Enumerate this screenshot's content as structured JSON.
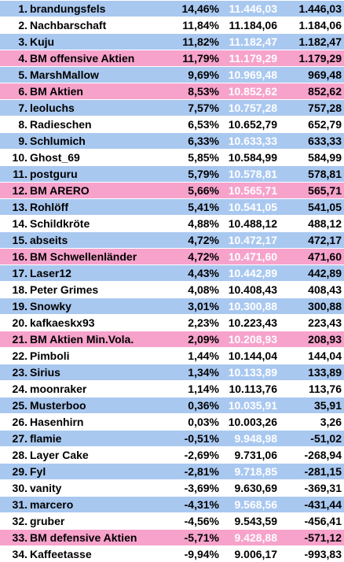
{
  "colors": {
    "white": "#ffffff",
    "blue": "#a9c8f0",
    "pink": "#f6a2cb"
  },
  "rows": [
    {
      "rank": "1.",
      "name": "brandungsfels",
      "percent": "14,46%",
      "value": "11.446,03",
      "change": "1.446,03",
      "color": "blue"
    },
    {
      "rank": "2.",
      "name": "Nachbarschaft",
      "percent": "11,84%",
      "value": "11.184,06",
      "change": "1.184,06",
      "color": "white"
    },
    {
      "rank": "3.",
      "name": "Kuju",
      "percent": "11,82%",
      "value": "11.182,47",
      "change": "1.182,47",
      "color": "blue"
    },
    {
      "rank": "4.",
      "name": "BM offensive Aktien",
      "percent": "11,79%",
      "value": "11.179,29",
      "change": "1.179,29",
      "color": "pink"
    },
    {
      "rank": "5.",
      "name": "MarshMallow",
      "percent": "9,69%",
      "value": "10.969,48",
      "change": "969,48",
      "color": "blue"
    },
    {
      "rank": "6.",
      "name": "BM Aktien",
      "percent": "8,53%",
      "value": "10.852,62",
      "change": "852,62",
      "color": "pink"
    },
    {
      "rank": "7.",
      "name": "leoluchs",
      "percent": "7,57%",
      "value": "10.757,28",
      "change": "757,28",
      "color": "blue"
    },
    {
      "rank": "8.",
      "name": "Radieschen",
      "percent": "6,53%",
      "value": "10.652,79",
      "change": "652,79",
      "color": "white"
    },
    {
      "rank": "9.",
      "name": "Schlumich",
      "percent": "6,33%",
      "value": "10.633,33",
      "change": "633,33",
      "color": "blue"
    },
    {
      "rank": "10.",
      "name": "Ghost_69",
      "percent": "5,85%",
      "value": "10.584,99",
      "change": "584,99",
      "color": "white"
    },
    {
      "rank": "11.",
      "name": "postguru",
      "percent": "5,79%",
      "value": "10.578,81",
      "change": "578,81",
      "color": "blue"
    },
    {
      "rank": "12.",
      "name": "BM ARERO",
      "percent": "5,66%",
      "value": "10.565,71",
      "change": "565,71",
      "color": "pink"
    },
    {
      "rank": "13.",
      "name": "Rohlöff",
      "percent": "5,41%",
      "value": "10.541,05",
      "change": "541,05",
      "color": "blue"
    },
    {
      "rank": "14.",
      "name": "Schildkröte",
      "percent": "4,88%",
      "value": "10.488,12",
      "change": "488,12",
      "color": "white"
    },
    {
      "rank": "15.",
      "name": "abseits",
      "percent": "4,72%",
      "value": "10.472,17",
      "change": "472,17",
      "color": "blue"
    },
    {
      "rank": "16.",
      "name": "BM Schwellenländer",
      "percent": "4,72%",
      "value": "10.471,60",
      "change": "471,60",
      "color": "pink"
    },
    {
      "rank": "17.",
      "name": "Laser12",
      "percent": "4,43%",
      "value": "10.442,89",
      "change": "442,89",
      "color": "blue"
    },
    {
      "rank": "18.",
      "name": "Peter Grimes",
      "percent": "4,08%",
      "value": "10.408,43",
      "change": "408,43",
      "color": "white"
    },
    {
      "rank": "19.",
      "name": "Snowky",
      "percent": "3,01%",
      "value": "10.300,88",
      "change": "300,88",
      "color": "blue"
    },
    {
      "rank": "20.",
      "name": "kafkaeskx93",
      "percent": "2,23%",
      "value": "10.223,43",
      "change": "223,43",
      "color": "white"
    },
    {
      "rank": "21.",
      "name": "BM Aktien Min.Vola.",
      "percent": "2,09%",
      "value": "10.208,93",
      "change": "208,93",
      "color": "pink"
    },
    {
      "rank": "22.",
      "name": "Pimboli",
      "percent": "1,44%",
      "value": "10.144,04",
      "change": "144,04",
      "color": "white"
    },
    {
      "rank": "23.",
      "name": "Sirius",
      "percent": "1,34%",
      "value": "10.133,89",
      "change": "133,89",
      "color": "blue"
    },
    {
      "rank": "24.",
      "name": "moonraker",
      "percent": "1,14%",
      "value": "10.113,76",
      "change": "113,76",
      "color": "white"
    },
    {
      "rank": "25.",
      "name": "Musterboo",
      "percent": "0,36%",
      "value": "10.035,91",
      "change": "35,91",
      "color": "blue"
    },
    {
      "rank": "26.",
      "name": "Hasenhirn",
      "percent": "0,03%",
      "value": "10.003,26",
      "change": "3,26",
      "color": "white"
    },
    {
      "rank": "27.",
      "name": "flamie",
      "percent": "-0,51%",
      "value": "9.948,98",
      "change": "-51,02",
      "color": "blue"
    },
    {
      "rank": "28.",
      "name": "Layer Cake",
      "percent": "-2,69%",
      "value": "9.731,06",
      "change": "-268,94",
      "color": "white"
    },
    {
      "rank": "29.",
      "name": "Fyl",
      "percent": "-2,81%",
      "value": "9.718,85",
      "change": "-281,15",
      "color": "blue"
    },
    {
      "rank": "30.",
      "name": "vanity",
      "percent": "-3,69%",
      "value": "9.630,69",
      "change": "-369,31",
      "color": "white"
    },
    {
      "rank": "31.",
      "name": "marcero",
      "percent": "-4,31%",
      "value": "9.568,56",
      "change": "-431,44",
      "color": "blue"
    },
    {
      "rank": "32.",
      "name": "gruber",
      "percent": "-4,56%",
      "value": "9.543,59",
      "change": "-456,41",
      "color": "white"
    },
    {
      "rank": "33.",
      "name": "BM defensive Aktien",
      "percent": "-5,71%",
      "value": "9.428,88",
      "change": "-571,12",
      "color": "pink"
    },
    {
      "rank": "34.",
      "name": "Kaffeetasse",
      "percent": "-9,94%",
      "value": "9.006,17",
      "change": "-993,83",
      "color": "white"
    }
  ]
}
